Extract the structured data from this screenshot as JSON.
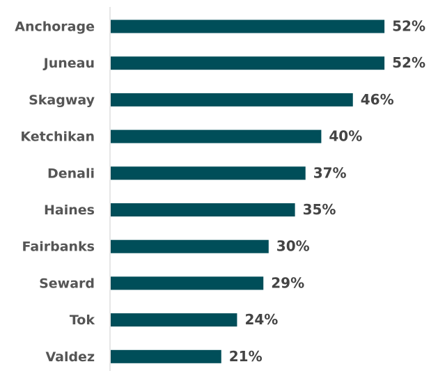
{
  "chart_data": {
    "type": "bar",
    "orientation": "horizontal",
    "categories": [
      "Anchorage",
      "Juneau",
      "Skagway",
      "Ketchikan",
      "Denali",
      "Haines",
      "Fairbanks",
      "Seward",
      "Tok",
      "Valdez"
    ],
    "values": [
      52,
      52,
      46,
      40,
      37,
      35,
      30,
      29,
      24,
      21
    ],
    "value_labels": [
      "52%",
      "52%",
      "46%",
      "40%",
      "37%",
      "35%",
      "30%",
      "29%",
      "24%",
      "21%"
    ],
    "color": "#004e59"
  }
}
